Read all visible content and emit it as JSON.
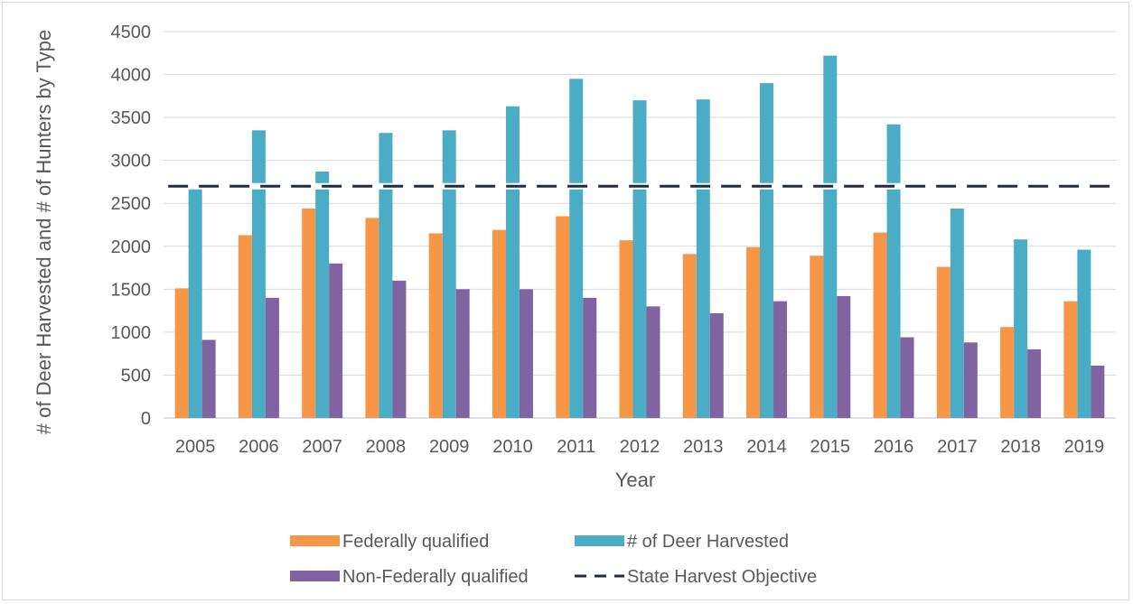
{
  "chart_data": {
    "type": "bar",
    "categories": [
      "2005",
      "2006",
      "2007",
      "2008",
      "2009",
      "2010",
      "2011",
      "2012",
      "2013",
      "2014",
      "2015",
      "2016",
      "2017",
      "2018",
      "2019"
    ],
    "series": [
      {
        "name": "Federally qualified",
        "color": "#f79646",
        "values": [
          1510,
          2130,
          2440,
          2330,
          2150,
          2190,
          2350,
          2070,
          1910,
          1990,
          1890,
          2160,
          1760,
          1060,
          1360
        ]
      },
      {
        "name": "# of Deer Harvested",
        "color": "#4bacc6",
        "values": [
          2710,
          3350,
          2870,
          3320,
          3350,
          3630,
          3950,
          3700,
          3710,
          3900,
          4220,
          3420,
          2440,
          2080,
          1960
        ]
      },
      {
        "name": "Non-Federally qualified",
        "color": "#8064a2",
        "values": [
          910,
          1400,
          1800,
          1600,
          1500,
          1500,
          1400,
          1300,
          1220,
          1360,
          1420,
          940,
          880,
          800,
          610
        ]
      }
    ],
    "objective": {
      "name": "State Harvest Objective",
      "value": 2700,
      "color": "#1f2d3d"
    },
    "xlabel": "Year",
    "ylabel": "# of Deer Harvested and # of Hunters by Type",
    "ylim": [
      0,
      4500
    ],
    "yticks": [
      0,
      500,
      1000,
      1500,
      2000,
      2500,
      3000,
      3500,
      4000,
      4500
    ],
    "grid": true,
    "legend": "bottom"
  }
}
